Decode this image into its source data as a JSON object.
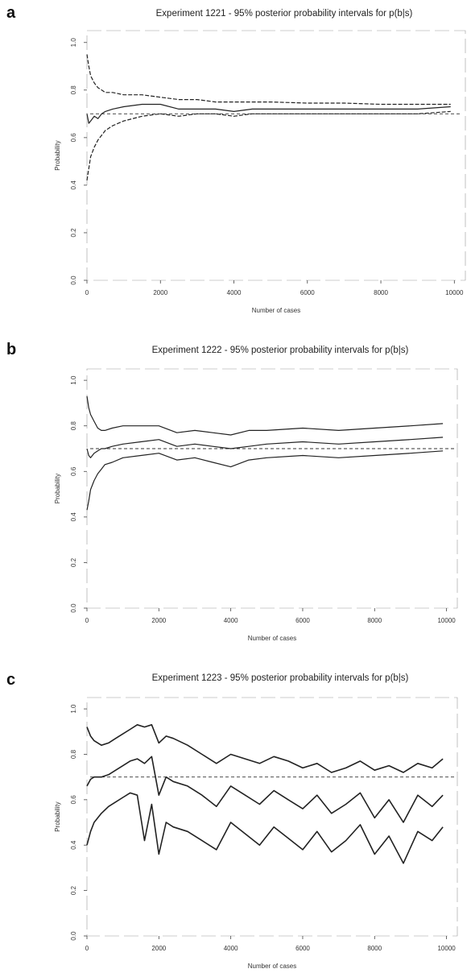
{
  "chart_data": [
    {
      "type": "line",
      "panel_label": "a",
      "title": "Experiment 1221 - 95% posterior probability intervals for p(b|s)",
      "xlabel": "Number of cases",
      "ylabel": "Probability",
      "xlim": [
        0,
        10300
      ],
      "ylim": [
        0.0,
        1.05
      ],
      "xticks": [
        0,
        2000,
        4000,
        6000,
        8000,
        10000
      ],
      "yticks": [
        0.0,
        0.2,
        0.4,
        0.6,
        0.8,
        1.0
      ],
      "reference_line": 0.7,
      "x": [
        0,
        50,
        100,
        200,
        300,
        400,
        500,
        700,
        1000,
        1500,
        2000,
        2500,
        3000,
        3500,
        4000,
        4500,
        5000,
        6000,
        7000,
        8000,
        9000,
        9900
      ],
      "series": [
        {
          "values": [
            0.95,
            0.9,
            0.86,
            0.83,
            0.81,
            0.8,
            0.79,
            0.79,
            0.78,
            0.78,
            0.77,
            0.76,
            0.76,
            0.75,
            0.75,
            0.75,
            0.75,
            0.745,
            0.745,
            0.74,
            0.74,
            0.74
          ],
          "style": "dashed"
        },
        {
          "values": [
            0.7,
            0.66,
            0.67,
            0.69,
            0.68,
            0.7,
            0.71,
            0.72,
            0.73,
            0.74,
            0.74,
            0.72,
            0.72,
            0.72,
            0.71,
            0.72,
            0.72,
            0.72,
            0.72,
            0.72,
            0.72,
            0.73
          ],
          "style": "solid"
        },
        {
          "values": [
            0.42,
            0.47,
            0.52,
            0.56,
            0.59,
            0.61,
            0.63,
            0.65,
            0.67,
            0.69,
            0.7,
            0.69,
            0.7,
            0.7,
            0.69,
            0.7,
            0.7,
            0.7,
            0.7,
            0.7,
            0.7,
            0.71
          ],
          "style": "dashed"
        }
      ]
    },
    {
      "type": "line",
      "panel_label": "b",
      "title": "Experiment 1222 - 95% posterior probability intervals for p(b|s)",
      "xlabel": "Number of cases",
      "ylabel": "Probability",
      "xlim": [
        0,
        10300
      ],
      "ylim": [
        0.0,
        1.05
      ],
      "xticks": [
        0,
        2000,
        4000,
        6000,
        8000,
        10000
      ],
      "yticks": [
        0.0,
        0.2,
        0.4,
        0.6,
        0.8,
        1.0
      ],
      "reference_line": 0.7,
      "x": [
        0,
        50,
        100,
        200,
        300,
        400,
        500,
        700,
        1000,
        1500,
        2000,
        2500,
        3000,
        3500,
        4000,
        4500,
        5000,
        6000,
        7000,
        8000,
        9000,
        9900
      ],
      "series": [
        {
          "values": [
            0.93,
            0.88,
            0.85,
            0.82,
            0.79,
            0.78,
            0.78,
            0.79,
            0.8,
            0.8,
            0.8,
            0.77,
            0.78,
            0.77,
            0.76,
            0.78,
            0.78,
            0.79,
            0.78,
            0.79,
            0.8,
            0.81
          ],
          "style": "dashed"
        },
        {
          "values": [
            0.7,
            0.67,
            0.66,
            0.68,
            0.69,
            0.7,
            0.7,
            0.71,
            0.72,
            0.73,
            0.74,
            0.71,
            0.72,
            0.71,
            0.7,
            0.71,
            0.72,
            0.73,
            0.72,
            0.73,
            0.74,
            0.75
          ],
          "style": "solid"
        },
        {
          "values": [
            0.43,
            0.47,
            0.52,
            0.56,
            0.59,
            0.61,
            0.63,
            0.64,
            0.66,
            0.67,
            0.68,
            0.65,
            0.66,
            0.64,
            0.62,
            0.65,
            0.66,
            0.67,
            0.66,
            0.67,
            0.68,
            0.69
          ],
          "style": "dashed"
        }
      ]
    },
    {
      "type": "line",
      "panel_label": "c",
      "title": "Experiment 1223 - 95% posterior probability intervals for p(b|s)",
      "xlabel": "Number of cases",
      "ylabel": "Probability",
      "xlim": [
        0,
        10300
      ],
      "ylim": [
        0.0,
        1.05
      ],
      "xticks": [
        0,
        2000,
        4000,
        6000,
        8000,
        10000
      ],
      "yticks": [
        0.0,
        0.2,
        0.4,
        0.6,
        0.8,
        1.0
      ],
      "reference_line": 0.7,
      "x": [
        0,
        100,
        200,
        400,
        600,
        800,
        1000,
        1200,
        1400,
        1600,
        1800,
        2000,
        2200,
        2400,
        2800,
        3200,
        3600,
        4000,
        4400,
        4800,
        5200,
        5600,
        6000,
        6400,
        6800,
        7200,
        7600,
        8000,
        8400,
        8800,
        9200,
        9600,
        9900
      ],
      "series": [
        {
          "values": [
            0.92,
            0.88,
            0.86,
            0.84,
            0.85,
            0.87,
            0.89,
            0.91,
            0.93,
            0.92,
            0.93,
            0.85,
            0.88,
            0.87,
            0.84,
            0.8,
            0.76,
            0.8,
            0.78,
            0.76,
            0.79,
            0.77,
            0.74,
            0.76,
            0.72,
            0.74,
            0.77,
            0.73,
            0.75,
            0.72,
            0.76,
            0.74,
            0.78
          ],
          "style": "dashed"
        },
        {
          "values": [
            0.66,
            0.69,
            0.7,
            0.7,
            0.71,
            0.73,
            0.75,
            0.77,
            0.78,
            0.76,
            0.79,
            0.62,
            0.7,
            0.68,
            0.66,
            0.62,
            0.57,
            0.66,
            0.62,
            0.58,
            0.64,
            0.6,
            0.56,
            0.62,
            0.54,
            0.58,
            0.63,
            0.52,
            0.6,
            0.5,
            0.62,
            0.57,
            0.62
          ],
          "style": "solid"
        },
        {
          "values": [
            0.4,
            0.46,
            0.5,
            0.54,
            0.57,
            0.59,
            0.61,
            0.63,
            0.62,
            0.42,
            0.58,
            0.36,
            0.5,
            0.48,
            0.46,
            0.42,
            0.38,
            0.5,
            0.45,
            0.4,
            0.48,
            0.43,
            0.38,
            0.46,
            0.37,
            0.42,
            0.49,
            0.36,
            0.44,
            0.32,
            0.46,
            0.42,
            0.48
          ],
          "style": "dashed"
        }
      ]
    }
  ]
}
